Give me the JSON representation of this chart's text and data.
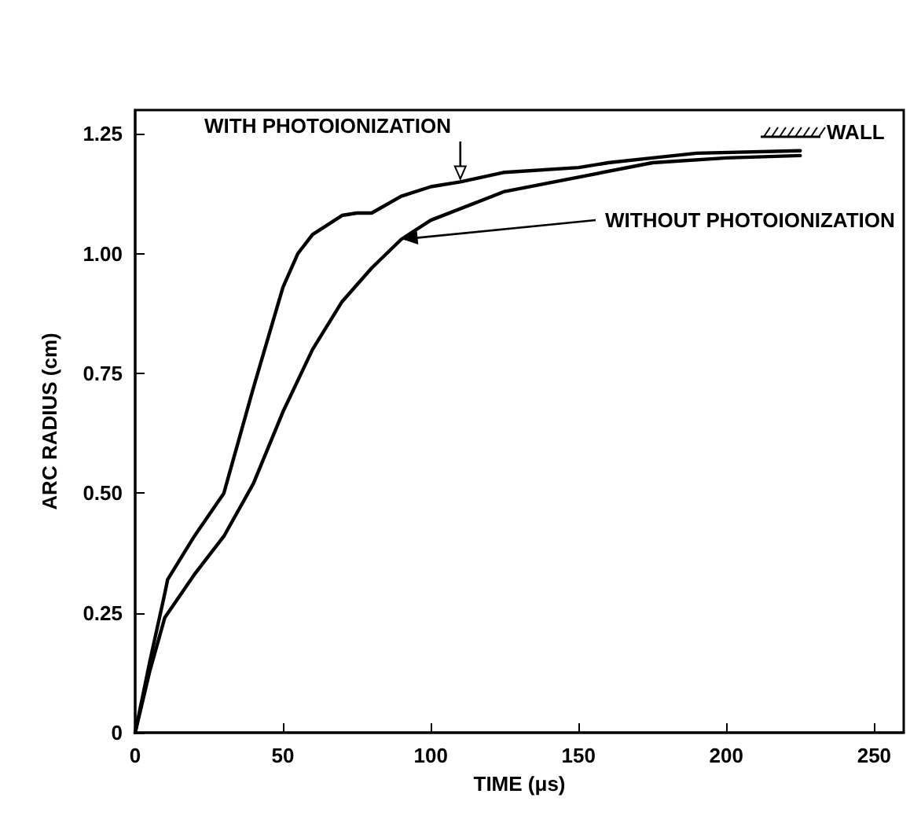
{
  "chart_data": {
    "type": "line",
    "xlabel": "TIME (μs)",
    "ylabel": "ARC RADIUS (cm)",
    "xlim": [
      0,
      260
    ],
    "xticks": [
      0,
      50,
      100,
      150,
      200,
      250
    ],
    "ylim": [
      0,
      1.3
    ],
    "yticks": [
      0,
      0.25,
      {
        "value": 0.5,
        "label": "0.50"
      },
      0.75,
      {
        "value": 1,
        "label": "1.00"
      },
      1.25
    ],
    "grid": false,
    "marker": "none",
    "line_style": "solid",
    "series": [
      {
        "color": "#000000",
        "x": [
          0,
          5,
          10,
          11,
          20,
          30,
          40,
          50,
          55,
          60,
          70,
          75,
          80,
          90,
          100,
          110,
          125,
          150,
          160,
          175,
          190,
          225
        ],
        "values": [
          0,
          0.15,
          0.29,
          0.32,
          0.41,
          0.5,
          0.72,
          0.93,
          1.0,
          1.04,
          1.08,
          1.085,
          1.085,
          1.12,
          1.14,
          1.15,
          1.17,
          1.18,
          1.19,
          1.2,
          1.21,
          1.215
        ]
      },
      {
        "color": "#000000",
        "x": [
          0,
          5,
          10,
          20,
          30,
          40,
          50,
          60,
          70,
          80,
          90,
          100,
          125,
          150,
          175,
          200,
          225
        ],
        "values": [
          0,
          0.13,
          0.24,
          0.33,
          0.41,
          0.52,
          0.67,
          0.8,
          0.9,
          0.97,
          1.03,
          1.07,
          1.13,
          1.16,
          1.19,
          1.2,
          1.205
        ]
      }
    ],
    "annotations": [
      {
        "text": "WITH PHOTOIONIZATION",
        "x": 110,
        "y": 1.15
      },
      {
        "text": "WITHOUT PHOTOIONIZATION",
        "x": 90,
        "y": 1.03
      },
      "WALL"
    ]
  }
}
